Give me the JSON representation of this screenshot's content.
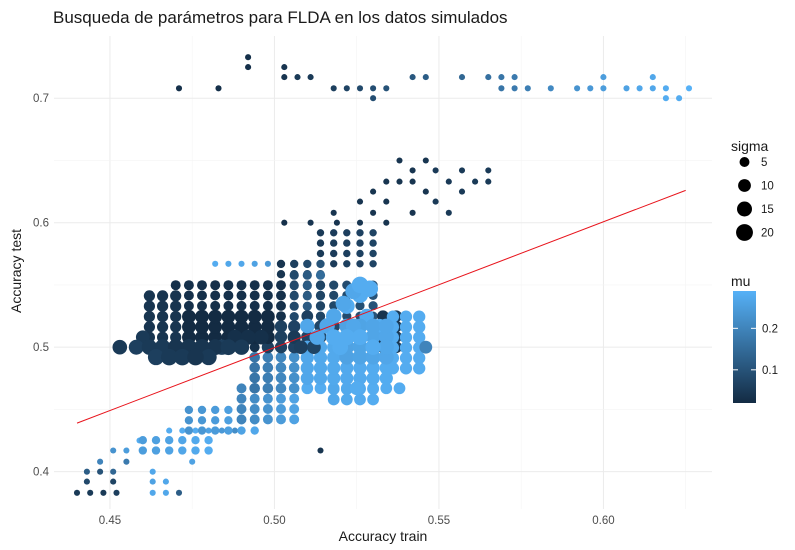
{
  "chart_data": {
    "type": "scatter",
    "title": "Busqueda de parámetros para FLDA en los datos simulados",
    "xlabel": "Accuracy train",
    "ylabel": "Accuracy test",
    "xlim": [
      0.433,
      0.633
    ],
    "ylim": [
      0.37,
      0.75
    ],
    "x_ticks": [
      0.45,
      0.5,
      0.55,
      0.6
    ],
    "x_tick_labels": [
      "0.45",
      "0.50",
      "0.55",
      "0.60"
    ],
    "y_ticks": [
      0.4,
      0.5,
      0.6,
      0.7
    ],
    "y_tick_labels": [
      "0.4",
      "0.5",
      "0.6",
      "0.7"
    ],
    "grid": true,
    "reference_line": {
      "color": "#e8141c",
      "points": [
        [
          0.44,
          0.439
        ],
        [
          0.625,
          0.626
        ]
      ]
    },
    "color_scale": {
      "variable": "mu",
      "legend_title": "mu",
      "low": 0.02,
      "high": 0.29,
      "low_color": "#132b43",
      "high_color": "#56b1f7",
      "breaks": [
        0.1,
        0.2
      ],
      "break_labels": [
        "0.1",
        "0.2"
      ]
    },
    "size_scale": {
      "variable": "sigma",
      "legend_title": "sigma",
      "breaks": [
        5,
        10,
        15,
        20
      ],
      "break_labels": [
        "5",
        "10",
        "15",
        "20"
      ],
      "range": [
        1,
        21
      ]
    },
    "legend_placement": "right",
    "points": [
      {
        "x": 0.471,
        "y": 0.708,
        "mu": 0.03,
        "sigma": 1
      },
      {
        "x": 0.483,
        "y": 0.708,
        "mu": 0.03,
        "sigma": 1
      },
      {
        "x": 0.492,
        "y": 0.733,
        "mu": 0.03,
        "sigma": 1
      },
      {
        "x": 0.492,
        "y": 0.725,
        "mu": 0.03,
        "sigma": 1
      },
      {
        "x": 0.503,
        "y": 0.725,
        "mu": 0.04,
        "sigma": 1
      },
      {
        "x": 0.503,
        "y": 0.717,
        "mu": 0.04,
        "sigma": 1
      },
      {
        "x": 0.507,
        "y": 0.717,
        "mu": 0.05,
        "sigma": 1
      },
      {
        "x": 0.511,
        "y": 0.717,
        "mu": 0.05,
        "sigma": 1
      },
      {
        "x": 0.518,
        "y": 0.708,
        "mu": 0.06,
        "sigma": 1
      },
      {
        "x": 0.522,
        "y": 0.708,
        "mu": 0.07,
        "sigma": 1
      },
      {
        "x": 0.526,
        "y": 0.708,
        "mu": 0.08,
        "sigma": 1
      },
      {
        "x": 0.53,
        "y": 0.708,
        "mu": 0.09,
        "sigma": 1
      },
      {
        "x": 0.53,
        "y": 0.7,
        "mu": 0.09,
        "sigma": 1
      },
      {
        "x": 0.534,
        "y": 0.708,
        "mu": 0.1,
        "sigma": 1
      },
      {
        "x": 0.542,
        "y": 0.717,
        "mu": 0.11,
        "sigma": 1
      },
      {
        "x": 0.546,
        "y": 0.717,
        "mu": 0.12,
        "sigma": 1
      },
      {
        "x": 0.557,
        "y": 0.717,
        "mu": 0.14,
        "sigma": 1
      },
      {
        "x": 0.565,
        "y": 0.717,
        "mu": 0.16,
        "sigma": 1
      },
      {
        "x": 0.569,
        "y": 0.717,
        "mu": 0.17,
        "sigma": 1
      },
      {
        "x": 0.573,
        "y": 0.717,
        "mu": 0.18,
        "sigma": 1
      },
      {
        "x": 0.569,
        "y": 0.708,
        "mu": 0.17,
        "sigma": 1
      },
      {
        "x": 0.573,
        "y": 0.708,
        "mu": 0.18,
        "sigma": 1
      },
      {
        "x": 0.577,
        "y": 0.708,
        "mu": 0.19,
        "sigma": 1
      },
      {
        "x": 0.584,
        "y": 0.708,
        "mu": 0.21,
        "sigma": 1
      },
      {
        "x": 0.592,
        "y": 0.708,
        "mu": 0.23,
        "sigma": 1
      },
      {
        "x": 0.596,
        "y": 0.708,
        "mu": 0.24,
        "sigma": 1
      },
      {
        "x": 0.6,
        "y": 0.717,
        "mu": 0.25,
        "sigma": 1
      },
      {
        "x": 0.6,
        "y": 0.708,
        "mu": 0.25,
        "sigma": 1
      },
      {
        "x": 0.607,
        "y": 0.708,
        "mu": 0.26,
        "sigma": 1
      },
      {
        "x": 0.611,
        "y": 0.708,
        "mu": 0.27,
        "sigma": 1
      },
      {
        "x": 0.615,
        "y": 0.717,
        "mu": 0.27,
        "sigma": 1
      },
      {
        "x": 0.615,
        "y": 0.708,
        "mu": 0.27,
        "sigma": 1
      },
      {
        "x": 0.619,
        "y": 0.708,
        "mu": 0.28,
        "sigma": 1
      },
      {
        "x": 0.619,
        "y": 0.7,
        "mu": 0.28,
        "sigma": 1
      },
      {
        "x": 0.623,
        "y": 0.7,
        "mu": 0.28,
        "sigma": 1
      },
      {
        "x": 0.626,
        "y": 0.708,
        "mu": 0.29,
        "sigma": 1
      },
      {
        "x": 0.538,
        "y": 0.65,
        "mu": 0.04,
        "sigma": 1
      },
      {
        "x": 0.546,
        "y": 0.65,
        "mu": 0.04,
        "sigma": 1
      },
      {
        "x": 0.542,
        "y": 0.642,
        "mu": 0.04,
        "sigma": 1
      },
      {
        "x": 0.549,
        "y": 0.642,
        "mu": 0.05,
        "sigma": 1
      },
      {
        "x": 0.557,
        "y": 0.642,
        "mu": 0.05,
        "sigma": 1
      },
      {
        "x": 0.565,
        "y": 0.642,
        "mu": 0.05,
        "sigma": 1
      },
      {
        "x": 0.534,
        "y": 0.633,
        "mu": 0.04,
        "sigma": 1
      },
      {
        "x": 0.538,
        "y": 0.633,
        "mu": 0.04,
        "sigma": 1
      },
      {
        "x": 0.542,
        "y": 0.633,
        "mu": 0.04,
        "sigma": 1
      },
      {
        "x": 0.553,
        "y": 0.633,
        "mu": 0.05,
        "sigma": 1
      },
      {
        "x": 0.561,
        "y": 0.633,
        "mu": 0.05,
        "sigma": 1
      },
      {
        "x": 0.565,
        "y": 0.633,
        "mu": 0.05,
        "sigma": 1
      },
      {
        "x": 0.53,
        "y": 0.625,
        "mu": 0.04,
        "sigma": 1
      },
      {
        "x": 0.546,
        "y": 0.625,
        "mu": 0.04,
        "sigma": 1
      },
      {
        "x": 0.557,
        "y": 0.625,
        "mu": 0.05,
        "sigma": 1
      },
      {
        "x": 0.526,
        "y": 0.617,
        "mu": 0.04,
        "sigma": 1
      },
      {
        "x": 0.534,
        "y": 0.617,
        "mu": 0.04,
        "sigma": 1
      },
      {
        "x": 0.549,
        "y": 0.617,
        "mu": 0.05,
        "sigma": 1
      },
      {
        "x": 0.518,
        "y": 0.608,
        "mu": 0.04,
        "sigma": 1
      },
      {
        "x": 0.53,
        "y": 0.608,
        "mu": 0.04,
        "sigma": 1
      },
      {
        "x": 0.542,
        "y": 0.608,
        "mu": 0.04,
        "sigma": 1
      },
      {
        "x": 0.553,
        "y": 0.608,
        "mu": 0.05,
        "sigma": 1
      },
      {
        "x": 0.503,
        "y": 0.6,
        "mu": 0.03,
        "sigma": 1
      },
      {
        "x": 0.511,
        "y": 0.6,
        "mu": 0.04,
        "sigma": 1
      },
      {
        "x": 0.519,
        "y": 0.6,
        "mu": 0.04,
        "sigma": 1
      },
      {
        "x": 0.526,
        "y": 0.6,
        "mu": 0.04,
        "sigma": 1
      },
      {
        "x": 0.534,
        "y": 0.6,
        "mu": 0.04,
        "sigma": 1
      },
      {
        "x": 0.482,
        "y": 0.567,
        "mu": 0.28,
        "sigma": 1
      },
      {
        "x": 0.486,
        "y": 0.567,
        "mu": 0.27,
        "sigma": 1
      },
      {
        "x": 0.49,
        "y": 0.567,
        "mu": 0.27,
        "sigma": 1
      },
      {
        "x": 0.494,
        "y": 0.567,
        "mu": 0.26,
        "sigma": 1
      },
      {
        "x": 0.498,
        "y": 0.567,
        "mu": 0.24,
        "sigma": 1
      },
      {
        "x": 0.502,
        "y": 0.567,
        "mu": 0.2,
        "sigma": 1
      },
      {
        "x": 0.506,
        "y": 0.567,
        "mu": 0.15,
        "sigma": 1
      },
      {
        "x": 0.468,
        "y": 0.433,
        "mu": 0.28,
        "sigma": 1
      },
      {
        "x": 0.472,
        "y": 0.433,
        "mu": 0.28,
        "sigma": 1
      },
      {
        "x": 0.476,
        "y": 0.433,
        "mu": 0.28,
        "sigma": 1
      },
      {
        "x": 0.48,
        "y": 0.433,
        "mu": 0.26,
        "sigma": 1
      },
      {
        "x": 0.484,
        "y": 0.433,
        "mu": 0.24,
        "sigma": 1
      },
      {
        "x": 0.488,
        "y": 0.433,
        "mu": 0.22,
        "sigma": 1
      },
      {
        "x": 0.464,
        "y": 0.425,
        "mu": 0.28,
        "sigma": 1
      },
      {
        "x": 0.459,
        "y": 0.425,
        "mu": 0.28,
        "sigma": 1
      },
      {
        "x": 0.455,
        "y": 0.417,
        "mu": 0.25,
        "sigma": 1
      },
      {
        "x": 0.451,
        "y": 0.417,
        "mu": 0.23,
        "sigma": 1
      },
      {
        "x": 0.447,
        "y": 0.408,
        "mu": 0.2,
        "sigma": 1
      },
      {
        "x": 0.455,
        "y": 0.408,
        "mu": 0.18,
        "sigma": 1
      },
      {
        "x": 0.443,
        "y": 0.4,
        "mu": 0.12,
        "sigma": 1
      },
      {
        "x": 0.447,
        "y": 0.4,
        "mu": 0.1,
        "sigma": 1
      },
      {
        "x": 0.451,
        "y": 0.4,
        "mu": 0.14,
        "sigma": 1
      },
      {
        "x": 0.443,
        "y": 0.392,
        "mu": 0.08,
        "sigma": 1
      },
      {
        "x": 0.451,
        "y": 0.392,
        "mu": 0.07,
        "sigma": 1
      },
      {
        "x": 0.44,
        "y": 0.383,
        "mu": 0.05,
        "sigma": 1
      },
      {
        "x": 0.444,
        "y": 0.383,
        "mu": 0.05,
        "sigma": 1
      },
      {
        "x": 0.448,
        "y": 0.383,
        "mu": 0.05,
        "sigma": 1
      },
      {
        "x": 0.452,
        "y": 0.383,
        "mu": 0.06,
        "sigma": 1
      },
      {
        "x": 0.463,
        "y": 0.392,
        "mu": 0.26,
        "sigma": 1
      },
      {
        "x": 0.463,
        "y": 0.4,
        "mu": 0.27,
        "sigma": 1
      },
      {
        "x": 0.467,
        "y": 0.392,
        "mu": 0.27,
        "sigma": 1
      },
      {
        "x": 0.463,
        "y": 0.383,
        "mu": 0.27,
        "sigma": 1
      },
      {
        "x": 0.467,
        "y": 0.383,
        "mu": 0.27,
        "sigma": 1
      },
      {
        "x": 0.471,
        "y": 0.383,
        "mu": 0.12,
        "sigma": 1
      },
      {
        "x": 0.514,
        "y": 0.417,
        "mu": 0.04,
        "sigma": 1
      },
      {
        "x": 0.475,
        "y": 0.408,
        "mu": 0.26,
        "sigma": 1
      }
    ],
    "grid_regions": [
      {
        "x0": 0.47,
        "x1": 0.502,
        "y0": 0.5,
        "y1": 0.55,
        "mu0": 0.03,
        "mu1": 0.03,
        "sigma": 5,
        "dx": 0.004,
        "dy": 0.0083
      },
      {
        "x0": 0.462,
        "x1": 0.47,
        "y0": 0.508,
        "y1": 0.542,
        "mu0": 0.04,
        "mu1": 0.04,
        "sigma": 7,
        "dx": 0.004,
        "dy": 0.0083
      },
      {
        "x0": 0.474,
        "x1": 0.498,
        "y0": 0.508,
        "y1": 0.525,
        "mu0": 0.02,
        "mu1": 0.02,
        "sigma": 12,
        "dx": 0.004,
        "dy": 0.0083
      },
      {
        "x0": 0.502,
        "x1": 0.514,
        "y0": 0.542,
        "y1": 0.575,
        "mu0": 0.04,
        "mu1": 0.1,
        "sigma": 3,
        "dx": 0.004,
        "dy": 0.0083
      },
      {
        "x0": 0.514,
        "x1": 0.53,
        "y0": 0.567,
        "y1": 0.592,
        "mu0": 0.05,
        "mu1": 0.07,
        "sigma": 2,
        "dx": 0.004,
        "dy": 0.0083
      },
      {
        "x0": 0.506,
        "x1": 0.514,
        "y0": 0.508,
        "y1": 0.558,
        "mu0": 0.08,
        "mu1": 0.15,
        "sigma": 4,
        "dx": 0.004,
        "dy": 0.0083
      },
      {
        "x0": 0.514,
        "x1": 0.53,
        "y0": 0.525,
        "y1": 0.55,
        "mu0": 0.07,
        "mu1": 0.1,
        "sigma": 4,
        "dx": 0.004,
        "dy": 0.0083
      },
      {
        "x0": 0.533,
        "x1": 0.54,
        "y0": 0.5,
        "y1": 0.525,
        "mu0": 0.04,
        "mu1": 0.05,
        "sigma": 8,
        "dx": 0.004,
        "dy": 0.0083
      },
      {
        "x0": 0.498,
        "x1": 0.52,
        "y0": 0.5,
        "y1": 0.517,
        "mu0": 0.06,
        "mu1": 0.08,
        "sigma": 9,
        "dx": 0.004,
        "dy": 0.0083
      },
      {
        "x0": 0.522,
        "x1": 0.536,
        "y0": 0.492,
        "y1": 0.517,
        "mu0": 0.26,
        "mu1": 0.27,
        "sigma": 15,
        "dx": 0.004,
        "dy": 0.0083
      },
      {
        "x0": 0.536,
        "x1": 0.546,
        "y0": 0.483,
        "y1": 0.525,
        "mu0": 0.28,
        "mu1": 0.28,
        "sigma": 9,
        "dx": 0.004,
        "dy": 0.0083
      },
      {
        "x0": 0.51,
        "x1": 0.536,
        "y0": 0.475,
        "y1": 0.5,
        "mu0": 0.27,
        "mu1": 0.28,
        "sigma": 11,
        "dx": 0.004,
        "dy": 0.0083
      },
      {
        "x0": 0.51,
        "x1": 0.54,
        "y0": 0.467,
        "y1": 0.475,
        "mu0": 0.28,
        "mu1": 0.28,
        "sigma": 8,
        "dx": 0.004,
        "dy": 0.0083
      },
      {
        "x0": 0.518,
        "x1": 0.53,
        "y0": 0.458,
        "y1": 0.467,
        "mu0": 0.27,
        "mu1": 0.28,
        "sigma": 8,
        "dx": 0.004,
        "dy": 0.0083
      },
      {
        "x0": 0.494,
        "x1": 0.51,
        "y0": 0.467,
        "y1": 0.492,
        "mu0": 0.17,
        "mu1": 0.24,
        "sigma": 6,
        "dx": 0.004,
        "dy": 0.0083
      },
      {
        "x0": 0.49,
        "x1": 0.506,
        "y0": 0.442,
        "y1": 0.467,
        "mu0": 0.2,
        "mu1": 0.26,
        "sigma": 5,
        "dx": 0.004,
        "dy": 0.0083
      },
      {
        "x0": 0.474,
        "x1": 0.494,
        "y0": 0.433,
        "y1": 0.45,
        "mu0": 0.23,
        "mu1": 0.27,
        "sigma": 3,
        "dx": 0.004,
        "dy": 0.0083
      },
      {
        "x0": 0.46,
        "x1": 0.48,
        "y0": 0.417,
        "y1": 0.433,
        "mu0": 0.25,
        "mu1": 0.28,
        "sigma": 3,
        "dx": 0.004,
        "dy": 0.0083
      }
    ],
    "blobs": [
      {
        "x": 0.453,
        "y": 0.5,
        "mu": 0.05,
        "sigma": 14
      },
      {
        "x": 0.458,
        "y": 0.5,
        "mu": 0.06,
        "sigma": 15
      },
      {
        "x": 0.462,
        "y": 0.5,
        "mu": 0.05,
        "sigma": 16
      },
      {
        "x": 0.466,
        "y": 0.5,
        "mu": 0.05,
        "sigma": 17
      },
      {
        "x": 0.47,
        "y": 0.5,
        "mu": 0.04,
        "sigma": 17
      },
      {
        "x": 0.474,
        "y": 0.5,
        "mu": 0.04,
        "sigma": 18
      },
      {
        "x": 0.478,
        "y": 0.5,
        "mu": 0.04,
        "sigma": 18
      },
      {
        "x": 0.482,
        "y": 0.5,
        "mu": 0.04,
        "sigma": 17
      },
      {
        "x": 0.486,
        "y": 0.5,
        "mu": 0.05,
        "sigma": 17
      },
      {
        "x": 0.49,
        "y": 0.5,
        "mu": 0.05,
        "sigma": 16
      },
      {
        "x": 0.464,
        "y": 0.492,
        "mu": 0.06,
        "sigma": 18
      },
      {
        "x": 0.468,
        "y": 0.492,
        "mu": 0.05,
        "sigma": 19
      },
      {
        "x": 0.472,
        "y": 0.492,
        "mu": 0.05,
        "sigma": 19
      },
      {
        "x": 0.476,
        "y": 0.492,
        "mu": 0.04,
        "sigma": 19
      },
      {
        "x": 0.48,
        "y": 0.492,
        "mu": 0.05,
        "sigma": 18
      },
      {
        "x": 0.484,
        "y": 0.5,
        "mu": 0.06,
        "sigma": 16
      },
      {
        "x": 0.488,
        "y": 0.508,
        "mu": 0.03,
        "sigma": 15
      },
      {
        "x": 0.492,
        "y": 0.508,
        "mu": 0.03,
        "sigma": 15
      },
      {
        "x": 0.496,
        "y": 0.508,
        "mu": 0.03,
        "sigma": 14
      },
      {
        "x": 0.46,
        "y": 0.508,
        "mu": 0.05,
        "sigma": 12
      },
      {
        "x": 0.518,
        "y": 0.525,
        "mu": 0.27,
        "sigma": 16
      },
      {
        "x": 0.522,
        "y": 0.533,
        "mu": 0.28,
        "sigma": 17
      },
      {
        "x": 0.526,
        "y": 0.542,
        "mu": 0.28,
        "sigma": 18
      },
      {
        "x": 0.529,
        "y": 0.547,
        "mu": 0.28,
        "sigma": 19
      },
      {
        "x": 0.526,
        "y": 0.55,
        "mu": 0.28,
        "sigma": 19
      },
      {
        "x": 0.524,
        "y": 0.545,
        "mu": 0.27,
        "sigma": 18
      },
      {
        "x": 0.521,
        "y": 0.535,
        "mu": 0.27,
        "sigma": 17
      },
      {
        "x": 0.516,
        "y": 0.517,
        "mu": 0.27,
        "sigma": 16
      },
      {
        "x": 0.513,
        "y": 0.508,
        "mu": 0.27,
        "sigma": 16
      },
      {
        "x": 0.518,
        "y": 0.508,
        "mu": 0.28,
        "sigma": 17
      },
      {
        "x": 0.522,
        "y": 0.508,
        "mu": 0.28,
        "sigma": 18
      },
      {
        "x": 0.526,
        "y": 0.508,
        "mu": 0.28,
        "sigma": 17
      },
      {
        "x": 0.53,
        "y": 0.5,
        "mu": 0.28,
        "sigma": 16
      },
      {
        "x": 0.534,
        "y": 0.5,
        "mu": 0.27,
        "sigma": 15
      },
      {
        "x": 0.52,
        "y": 0.5,
        "mu": 0.28,
        "sigma": 17
      },
      {
        "x": 0.524,
        "y": 0.517,
        "mu": 0.27,
        "sigma": 15
      },
      {
        "x": 0.528,
        "y": 0.525,
        "mu": 0.28,
        "sigma": 14
      },
      {
        "x": 0.51,
        "y": 0.517,
        "mu": 0.27,
        "sigma": 14
      },
      {
        "x": 0.532,
        "y": 0.517,
        "mu": 0.28,
        "sigma": 13
      },
      {
        "x": 0.508,
        "y": 0.5,
        "mu": 0.06,
        "sigma": 12
      },
      {
        "x": 0.512,
        "y": 0.5,
        "mu": 0.07,
        "sigma": 12
      },
      {
        "x": 0.506,
        "y": 0.508,
        "mu": 0.05,
        "sigma": 11
      },
      {
        "x": 0.546,
        "y": 0.5,
        "mu": 0.2,
        "sigma": 10
      },
      {
        "x": 0.525,
        "y": 0.467,
        "mu": 0.28,
        "sigma": 12
      },
      {
        "x": 0.51,
        "y": 0.525,
        "mu": 0.06,
        "sigma": 8
      },
      {
        "x": 0.532,
        "y": 0.508,
        "mu": 0.04,
        "sigma": 9
      }
    ]
  }
}
